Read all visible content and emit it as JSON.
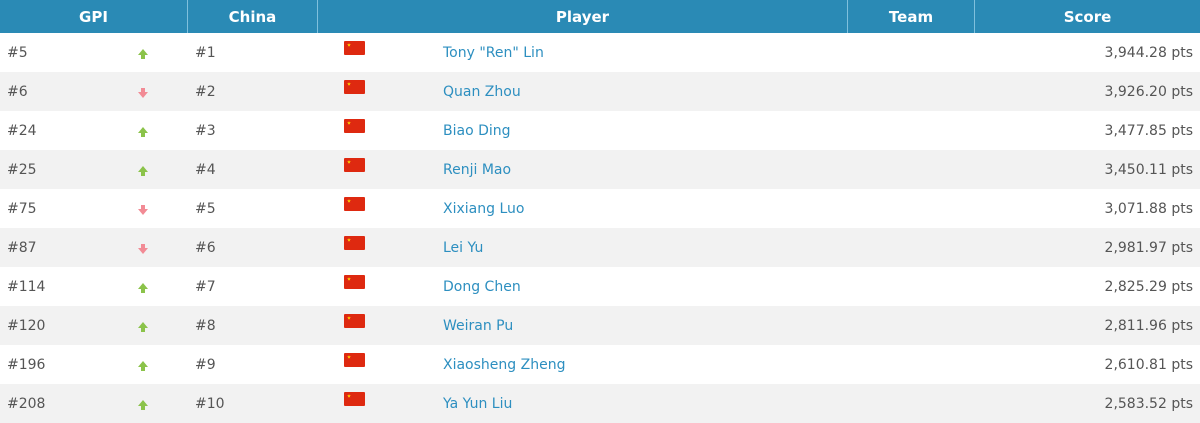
{
  "headers": {
    "gpi": "GPI",
    "china": "China",
    "player": "Player",
    "team": "Team",
    "score": "Score"
  },
  "colors": {
    "header": "#2a8ab5",
    "link": "#2d8fc0",
    "up": "#8bc34a",
    "down": "#f28b95"
  },
  "rows": [
    {
      "gpi": "#5",
      "trend": "up",
      "china": "#1",
      "flag": "china-flag",
      "player": "Tony \"Ren\" Lin",
      "team": "",
      "score": "3,944.28 pts"
    },
    {
      "gpi": "#6",
      "trend": "down",
      "china": "#2",
      "flag": "china-flag",
      "player": "Quan Zhou",
      "team": "",
      "score": "3,926.20 pts"
    },
    {
      "gpi": "#24",
      "trend": "up",
      "china": "#3",
      "flag": "china-flag",
      "player": "Biao Ding",
      "team": "",
      "score": "3,477.85 pts"
    },
    {
      "gpi": "#25",
      "trend": "up",
      "china": "#4",
      "flag": "china-flag",
      "player": "Renji Mao",
      "team": "",
      "score": "3,450.11 pts"
    },
    {
      "gpi": "#75",
      "trend": "down",
      "china": "#5",
      "flag": "china-flag",
      "player": "Xixiang Luo",
      "team": "",
      "score": "3,071.88 pts"
    },
    {
      "gpi": "#87",
      "trend": "down",
      "china": "#6",
      "flag": "china-flag",
      "player": "Lei Yu",
      "team": "",
      "score": "2,981.97 pts"
    },
    {
      "gpi": "#114",
      "trend": "up",
      "china": "#7",
      "flag": "china-flag",
      "player": "Dong Chen",
      "team": "",
      "score": "2,825.29 pts"
    },
    {
      "gpi": "#120",
      "trend": "up",
      "china": "#8",
      "flag": "china-flag",
      "player": "Weiran Pu",
      "team": "",
      "score": "2,811.96 pts"
    },
    {
      "gpi": "#196",
      "trend": "up",
      "china": "#9",
      "flag": "china-flag",
      "player": "Xiaosheng Zheng",
      "team": "",
      "score": "2,610.81 pts"
    },
    {
      "gpi": "#208",
      "trend": "up",
      "china": "#10",
      "flag": "china-flag",
      "player": "Ya Yun Liu",
      "team": "",
      "score": "2,583.52 pts"
    }
  ]
}
